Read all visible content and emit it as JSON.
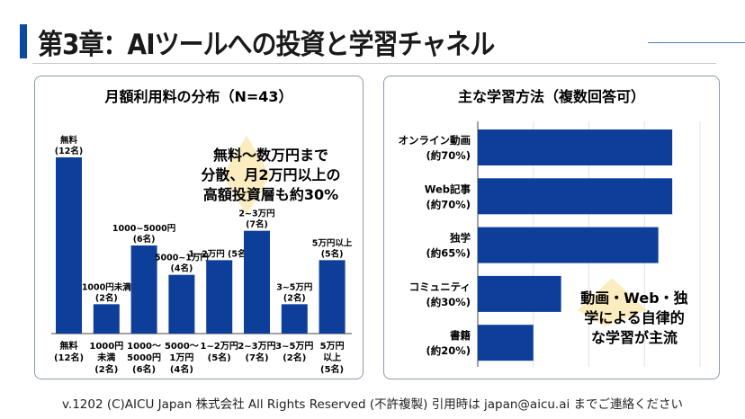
{
  "slide": {
    "title": "第3章：AIツールへの投資と学習チャネル",
    "footer": "v.1202 (C)AICU Japan 株式会社 All Rights Reserved (不許複製) 引用時は japan@aicu.ai までご連絡ください"
  },
  "colors": {
    "bar": "#0d3f9a",
    "accent": "#0d4aa1",
    "highlight": "#fbe6a6"
  },
  "chart_data": [
    {
      "type": "bar",
      "title": "月額利用料の分布（N=43）",
      "categories": [
        "無料",
        "1000円未満",
        "1000~5000円",
        "5000~1万円",
        "1~2万円",
        "2~3万円",
        "3~5万円",
        "5万円以上"
      ],
      "values": [
        12,
        2,
        6,
        4,
        5,
        7,
        2,
        5
      ],
      "data_labels": [
        [
          "無料",
          "(12名)"
        ],
        [
          "1000円未満",
          "(2名)"
        ],
        [
          "1000~5000円",
          "(6名)"
        ],
        [
          "5000~1万円",
          "(4名)"
        ],
        [
          "1~2万円 (5名)"
        ],
        [
          "2~3万円",
          "(7名)"
        ],
        [
          "3~5万円",
          "(2名)"
        ],
        [
          "5万円以上",
          "(5名)"
        ]
      ],
      "tick_labels": [
        [
          "無料",
          "(12名)"
        ],
        [
          "1000円",
          "未満",
          "(2名)"
        ],
        [
          "1000〜",
          "5000円",
          "(6名)"
        ],
        [
          "5000〜",
          "1万円",
          "(4名)"
        ],
        [
          "1~2万円",
          "(5名)"
        ],
        [
          "2~3万円",
          "(7名)"
        ],
        [
          "3~5万円",
          "(2名)"
        ],
        [
          "5万円",
          "以上",
          "(5名)"
        ]
      ],
      "annotation": [
        "無料〜数万円まで",
        "分散、月2万円以上の",
        "高額投資層も約30%"
      ],
      "ylim": [
        0,
        12
      ],
      "grid": false
    },
    {
      "type": "bar",
      "orientation": "horizontal",
      "title": "主な学習方法（複数回答可）",
      "categories": [
        "オンライン動画",
        "Web記事",
        "独学",
        "コミュニティ",
        "書籍"
      ],
      "values": [
        70,
        70,
        65,
        30,
        20
      ],
      "tick_labels": [
        [
          "オンライン動画",
          "(約70%)"
        ],
        [
          "Web記事",
          "(約70%)"
        ],
        [
          "独学",
          "(約65%)"
        ],
        [
          "コミュニティ",
          "(約30%)"
        ],
        [
          "書籍",
          "(約20%)"
        ]
      ],
      "annotation": [
        "動画・Web・独",
        "学による自律的",
        "な学習が主流"
      ],
      "xlim": [
        0,
        80
      ],
      "grid": true
    }
  ]
}
